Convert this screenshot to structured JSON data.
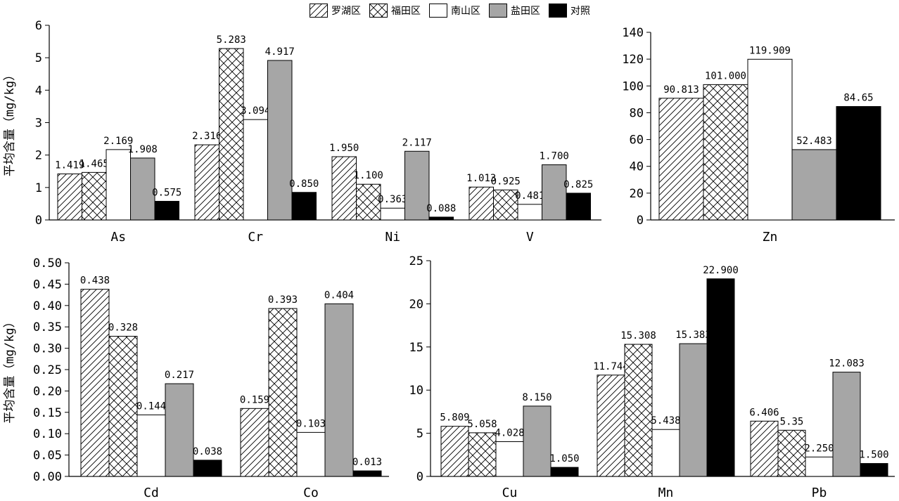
{
  "legend": [
    {
      "label": "罗湖区",
      "pattern": "hatch"
    },
    {
      "label": "福田区",
      "pattern": "cross"
    },
    {
      "label": "南山区",
      "pattern": "white"
    },
    {
      "label": "盐田区",
      "pattern": "gray"
    },
    {
      "label": "对照",
      "pattern": "black"
    }
  ],
  "colors": {
    "gray": "#a6a6a6",
    "black": "#000000",
    "white": "#ffffff",
    "axis": "#000000"
  },
  "chart_data": [
    {
      "type": "bar",
      "id": "top-left",
      "ylabel": "平均含量（mg/kg）",
      "ylim": [
        0,
        6
      ],
      "yticks": [
        0,
        1,
        2,
        3,
        4,
        5,
        6
      ],
      "tick_decimals": 0,
      "categories": [
        "As",
        "Cr",
        "Ni",
        "V"
      ],
      "series": [
        {
          "name": "罗湖区",
          "values": [
            1.419,
            2.316,
            1.95,
            1.013
          ],
          "labels": [
            "1.419",
            "2.316",
            "1.950",
            "1.013"
          ]
        },
        {
          "name": "福田区",
          "values": [
            1.465,
            5.283,
            1.1,
            0.925
          ],
          "labels": [
            "1.465",
            "5.283",
            "1.100",
            "0.925"
          ]
        },
        {
          "name": "南山区",
          "values": [
            2.169,
            3.094,
            0.363,
            0.481
          ],
          "labels": [
            "2.169",
            "3.094",
            "0.363",
            "0.481"
          ]
        },
        {
          "name": "盐田区",
          "values": [
            1.908,
            4.917,
            2.117,
            1.7
          ],
          "labels": [
            "1.908",
            "4.917",
            "2.117",
            "1.700"
          ]
        },
        {
          "name": "对照",
          "values": [
            0.575,
            0.85,
            0.088,
            0.825
          ],
          "labels": [
            "0.575",
            "0.850",
            "0.088",
            "0.825"
          ]
        }
      ]
    },
    {
      "type": "bar",
      "id": "top-right",
      "ylabel": "",
      "ylim": [
        0,
        140
      ],
      "yticks": [
        0,
        20,
        40,
        60,
        80,
        100,
        120,
        140
      ],
      "tick_decimals": 0,
      "categories": [
        "Zn"
      ],
      "series": [
        {
          "name": "罗湖区",
          "values": [
            90.813
          ],
          "labels": [
            "90.813"
          ]
        },
        {
          "name": "福田区",
          "values": [
            101.0
          ],
          "labels": [
            "101.000"
          ]
        },
        {
          "name": "南山区",
          "values": [
            119.909
          ],
          "labels": [
            "119.909"
          ]
        },
        {
          "name": "盐田区",
          "values": [
            52.483
          ],
          "labels": [
            "52.483"
          ]
        },
        {
          "name": "对照",
          "values": [
            84.65
          ],
          "labels": [
            "84.65"
          ]
        }
      ]
    },
    {
      "type": "bar",
      "id": "bottom-left",
      "ylabel": "平均含量（mg/kg）",
      "ylim": [
        0,
        0.5
      ],
      "yticks": [
        0,
        0.05,
        0.1,
        0.15,
        0.2,
        0.25,
        0.3,
        0.35,
        0.4,
        0.45,
        0.5
      ],
      "tick_decimals": 2,
      "categories": [
        "Cd",
        "Co"
      ],
      "series": [
        {
          "name": "罗湖区",
          "values": [
            0.438,
            0.159
          ],
          "labels": [
            "0.438",
            "0.159"
          ]
        },
        {
          "name": "福田区",
          "values": [
            0.328,
            0.393
          ],
          "labels": [
            "0.328",
            "0.393"
          ]
        },
        {
          "name": "南山区",
          "values": [
            0.144,
            0.103
          ],
          "labels": [
            "0.144",
            "0.103"
          ]
        },
        {
          "name": "盐田区",
          "values": [
            0.217,
            0.404
          ],
          "labels": [
            "0.217",
            "0.404"
          ]
        },
        {
          "name": "对照",
          "values": [
            0.038,
            0.013
          ],
          "labels": [
            "0.038",
            "0.013"
          ]
        }
      ]
    },
    {
      "type": "bar",
      "id": "bottom-right",
      "ylabel": "",
      "ylim": [
        0,
        25
      ],
      "yticks": [
        0,
        5,
        10,
        15,
        20,
        25
      ],
      "tick_decimals": 0,
      "categories": [
        "Cu",
        "Mn",
        "Pb"
      ],
      "series": [
        {
          "name": "罗湖区",
          "values": [
            5.809,
            11.744,
            6.406
          ],
          "labels": [
            "5.809",
            "11.744",
            "6.406"
          ]
        },
        {
          "name": "福田区",
          "values": [
            5.058,
            15.308,
            5.35
          ],
          "labels": [
            "5.058",
            "15.308",
            "5.35"
          ]
        },
        {
          "name": "南山区",
          "values": [
            4.028,
            5.438,
            2.25
          ],
          "labels": [
            "4.028",
            "5.438",
            "2.250"
          ]
        },
        {
          "name": "盐田区",
          "values": [
            8.15,
            15.383,
            12.083
          ],
          "labels": [
            "8.150",
            "15.383",
            "12.083"
          ]
        },
        {
          "name": "对照",
          "values": [
            1.05,
            22.9,
            1.5
          ],
          "labels": [
            "1.050",
            "22.900",
            "1.500"
          ]
        }
      ]
    }
  ]
}
